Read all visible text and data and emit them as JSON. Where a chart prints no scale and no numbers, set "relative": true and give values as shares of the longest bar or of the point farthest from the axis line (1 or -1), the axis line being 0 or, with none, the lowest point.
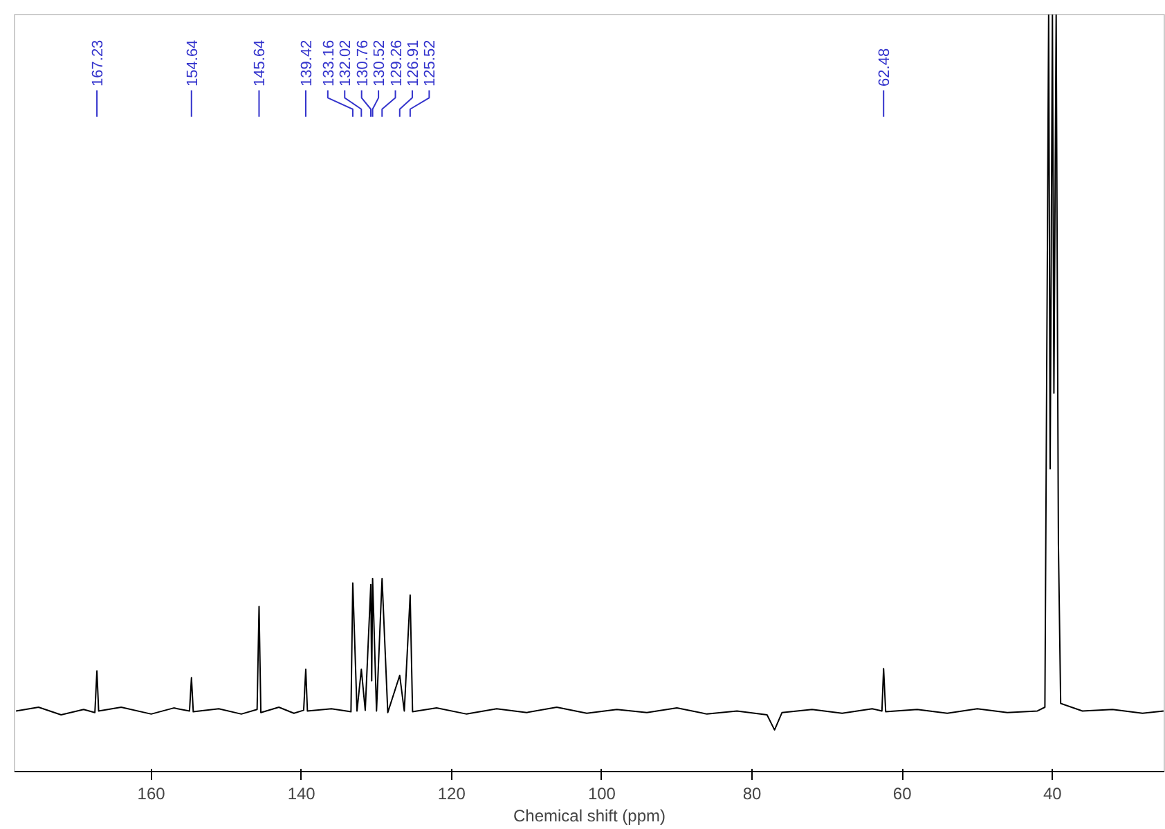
{
  "chart_data": {
    "type": "line",
    "relative": true,
    "xlabel": "Chemical shift (ppm)",
    "xlim": [
      178.2,
      25.1
    ],
    "xticks": [
      160,
      140,
      120,
      100,
      80,
      60,
      40
    ],
    "grid": false,
    "tick_labels": "x",
    "marker": "none",
    "line_style": "solid",
    "series": [
      {
        "color": "#000000",
        "x": [
          178,
          175,
          172,
          169,
          167.5,
          167.23,
          167.0,
          164,
          160,
          157,
          154.9,
          154.64,
          154.4,
          151,
          148,
          145.9,
          145.64,
          145.4,
          143,
          141,
          139.7,
          139.42,
          139.2,
          136,
          133.4,
          133.16,
          132.6,
          132.02,
          131.5,
          130.76,
          130.64,
          130.52,
          130.0,
          129.26,
          128.5,
          126.91,
          126.3,
          125.52,
          125.2,
          122,
          118,
          114,
          110,
          106,
          102,
          98,
          94,
          90,
          86,
          82,
          78,
          77,
          76,
          72,
          68,
          64,
          62.7,
          62.48,
          62.2,
          58,
          54,
          50,
          46,
          42,
          41.0,
          40.5,
          40.3,
          40.0,
          39.8,
          39.5,
          39.2,
          38.9,
          36,
          32,
          28,
          25.2
        ],
        "values": [
          0.08,
          0.085,
          0.075,
          0.082,
          0.078,
          0.133,
          0.08,
          0.085,
          0.076,
          0.084,
          0.08,
          0.124,
          0.079,
          0.083,
          0.076,
          0.082,
          0.218,
          0.078,
          0.085,
          0.077,
          0.081,
          0.135,
          0.08,
          0.083,
          0.079,
          0.249,
          0.08,
          0.135,
          0.081,
          0.247,
          0.12,
          0.255,
          0.08,
          0.255,
          0.078,
          0.127,
          0.08,
          0.233,
          0.079,
          0.084,
          0.076,
          0.083,
          0.078,
          0.085,
          0.077,
          0.082,
          0.078,
          0.084,
          0.076,
          0.08,
          0.075,
          0.055,
          0.078,
          0.082,
          0.077,
          0.083,
          0.08,
          0.136,
          0.079,
          0.082,
          0.077,
          0.083,
          0.078,
          0.08,
          0.085,
          1.0,
          0.4,
          1.0,
          0.5,
          1.0,
          0.3,
          0.09,
          0.08,
          0.082,
          0.077,
          0.08
        ]
      }
    ],
    "annotations": [
      {
        "text": "167.23",
        "x": 167.23
      },
      {
        "text": "154.64",
        "x": 154.64
      },
      {
        "text": "145.64",
        "x": 145.64
      },
      {
        "text": "139.42",
        "x": 139.42
      },
      {
        "text": "133.16",
        "x": 133.16
      },
      {
        "text": "132.02",
        "x": 132.02
      },
      {
        "text": "130.76",
        "x": 130.76
      },
      {
        "text": "130.52",
        "x": 130.52
      },
      {
        "text": "129.26",
        "x": 129.26
      },
      {
        "text": "126.91",
        "x": 126.91
      },
      {
        "text": "125.52",
        "x": 125.52
      },
      {
        "text": "62.48",
        "x": 62.48
      }
    ]
  }
}
